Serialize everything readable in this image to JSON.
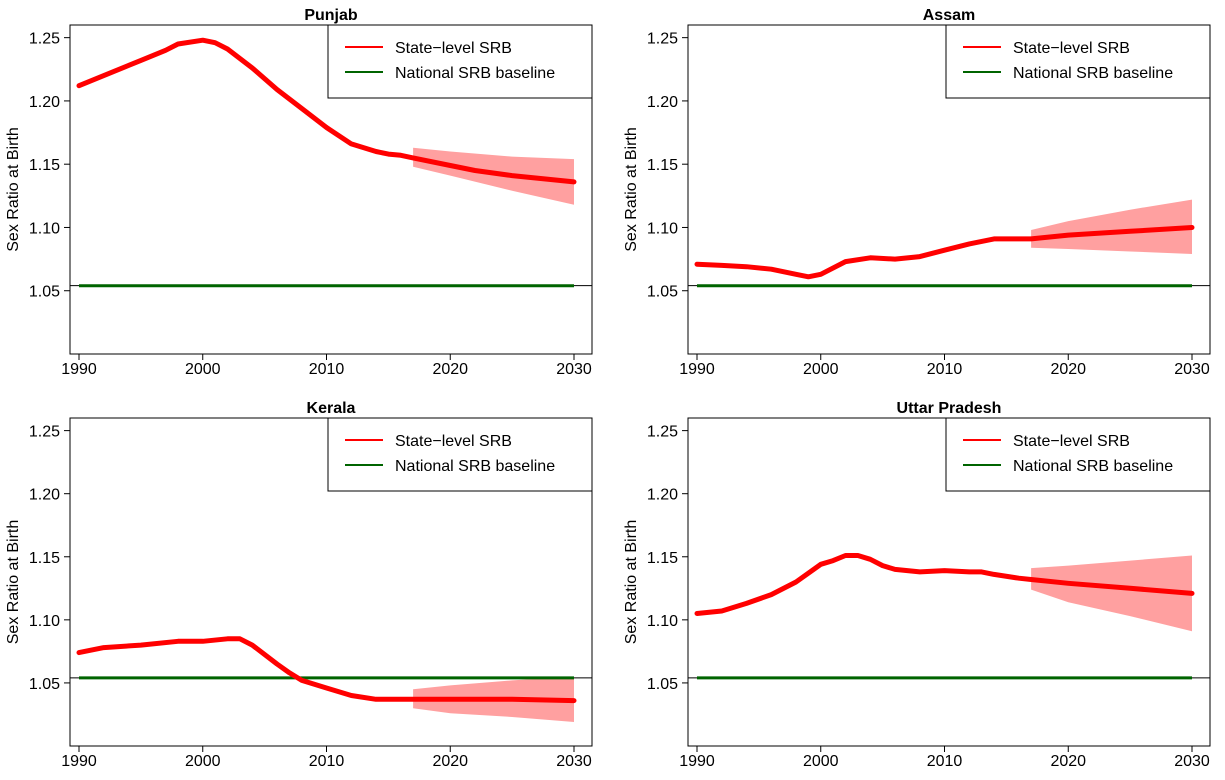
{
  "chart_data": [
    {
      "type": "line",
      "title": "Punjab",
      "xlabel": "",
      "ylabel": "Sex Ratio at Birth",
      "xlim": [
        1990,
        2030
      ],
      "ylim": [
        1.0,
        1.26
      ],
      "xticks": [
        "1990",
        "2000",
        "2010",
        "2020",
        "2030"
      ],
      "yticks": [
        "1.05",
        "1.10",
        "1.15",
        "1.20",
        "1.25"
      ],
      "legend": {
        "position": "top-right",
        "entries": [
          "State−level SRB",
          "National SRB baseline"
        ]
      },
      "series": [
        {
          "name": "State−level SRB",
          "color": "#ff0000",
          "x": [
            1990,
            1992,
            1995,
            1997,
            1998,
            2000,
            2001,
            2002,
            2004,
            2006,
            2008,
            2010,
            2012,
            2014,
            2015,
            2016,
            2017,
            2020,
            2022,
            2025,
            2028,
            2030
          ],
          "y": [
            1.212,
            1.22,
            1.232,
            1.24,
            1.245,
            1.248,
            1.246,
            1.241,
            1.226,
            1.209,
            1.194,
            1.179,
            1.166,
            1.16,
            1.158,
            1.157,
            1.155,
            1.149,
            1.145,
            1.141,
            1.138,
            1.136
          ]
        },
        {
          "name": "National SRB baseline",
          "color": "#006400",
          "x": [
            1990,
            2030
          ],
          "y": [
            1.054,
            1.054
          ]
        }
      ],
      "band": {
        "color": "#ffa0a0",
        "x": [
          2017,
          2020,
          2025,
          2030
        ],
        "lower": [
          1.148,
          1.141,
          1.129,
          1.118
        ],
        "upper": [
          1.163,
          1.16,
          1.156,
          1.154
        ]
      }
    },
    {
      "type": "line",
      "title": "Assam",
      "xlabel": "",
      "ylabel": "Sex Ratio at Birth",
      "xlim": [
        1990,
        2030
      ],
      "ylim": [
        1.0,
        1.26
      ],
      "xticks": [
        "1990",
        "2000",
        "2010",
        "2020",
        "2030"
      ],
      "yticks": [
        "1.05",
        "1.10",
        "1.15",
        "1.20",
        "1.25"
      ],
      "legend": {
        "position": "top-right",
        "entries": [
          "State−level SRB",
          "National SRB baseline"
        ]
      },
      "series": [
        {
          "name": "State−level SRB",
          "color": "#ff0000",
          "x": [
            1990,
            1992,
            1994,
            1996,
            1998,
            1999,
            2000,
            2002,
            2004,
            2006,
            2008,
            2010,
            2012,
            2014,
            2015,
            2016,
            2017,
            2020,
            2025,
            2030
          ],
          "y": [
            1.071,
            1.07,
            1.069,
            1.067,
            1.063,
            1.061,
            1.063,
            1.073,
            1.076,
            1.075,
            1.077,
            1.082,
            1.087,
            1.091,
            1.091,
            1.091,
            1.091,
            1.094,
            1.097,
            1.1
          ]
        },
        {
          "name": "National SRB baseline",
          "color": "#006400",
          "x": [
            1990,
            2030
          ],
          "y": [
            1.054,
            1.054
          ]
        }
      ],
      "band": {
        "color": "#ffa0a0",
        "x": [
          2017,
          2020,
          2025,
          2030
        ],
        "lower": [
          1.084,
          1.083,
          1.081,
          1.079
        ],
        "upper": [
          1.098,
          1.105,
          1.114,
          1.122
        ]
      }
    },
    {
      "type": "line",
      "title": "Kerala",
      "xlabel": "",
      "ylabel": "Sex Ratio at Birth",
      "xlim": [
        1990,
        2030
      ],
      "ylim": [
        1.0,
        1.26
      ],
      "xticks": [
        "1990",
        "2000",
        "2010",
        "2020",
        "2030"
      ],
      "yticks": [
        "1.05",
        "1.10",
        "1.15",
        "1.20",
        "1.25"
      ],
      "legend": {
        "position": "top-right",
        "entries": [
          "State−level SRB",
          "National SRB baseline"
        ]
      },
      "series": [
        {
          "name": "State−level SRB",
          "color": "#ff0000",
          "x": [
            1990,
            1992,
            1995,
            1998,
            2000,
            2002,
            2003,
            2004,
            2006,
            2007,
            2008,
            2010,
            2012,
            2014,
            2016,
            2017,
            2020,
            2025,
            2030
          ],
          "y": [
            1.074,
            1.078,
            1.08,
            1.083,
            1.083,
            1.085,
            1.085,
            1.08,
            1.065,
            1.058,
            1.052,
            1.046,
            1.04,
            1.037,
            1.037,
            1.037,
            1.037,
            1.037,
            1.036
          ]
        },
        {
          "name": "National SRB baseline",
          "color": "#006400",
          "x": [
            1990,
            2030
          ],
          "y": [
            1.054,
            1.054
          ]
        }
      ],
      "band": {
        "color": "#ffa0a0",
        "x": [
          2017,
          2020,
          2025,
          2030
        ],
        "lower": [
          1.03,
          1.026,
          1.023,
          1.019
        ],
        "upper": [
          1.045,
          1.048,
          1.052,
          1.055
        ]
      }
    },
    {
      "type": "line",
      "title": "Uttar Pradesh",
      "xlabel": "",
      "ylabel": "Sex Ratio at Birth",
      "xlim": [
        1990,
        2030
      ],
      "ylim": [
        1.0,
        1.26
      ],
      "xticks": [
        "1990",
        "2000",
        "2010",
        "2020",
        "2030"
      ],
      "yticks": [
        "1.05",
        "1.10",
        "1.15",
        "1.20",
        "1.25"
      ],
      "legend": {
        "position": "top-right",
        "entries": [
          "State−level SRB",
          "National SRB baseline"
        ]
      },
      "series": [
        {
          "name": "State−level SRB",
          "color": "#ff0000",
          "x": [
            1990,
            1992,
            1994,
            1996,
            1998,
            2000,
            2001,
            2002,
            2003,
            2004,
            2005,
            2006,
            2008,
            2010,
            2012,
            2013,
            2014,
            2016,
            2017,
            2020,
            2025,
            2030
          ],
          "y": [
            1.105,
            1.107,
            1.113,
            1.12,
            1.13,
            1.144,
            1.147,
            1.151,
            1.151,
            1.148,
            1.143,
            1.14,
            1.138,
            1.139,
            1.138,
            1.138,
            1.136,
            1.133,
            1.132,
            1.129,
            1.125,
            1.121
          ]
        },
        {
          "name": "National SRB baseline",
          "color": "#006400",
          "x": [
            1990,
            2030
          ],
          "y": [
            1.054,
            1.054
          ]
        }
      ],
      "band": {
        "color": "#ffa0a0",
        "x": [
          2017,
          2020,
          2025,
          2030
        ],
        "lower": [
          1.124,
          1.114,
          1.103,
          1.091
        ],
        "upper": [
          1.141,
          1.143,
          1.147,
          1.151
        ]
      }
    }
  ]
}
